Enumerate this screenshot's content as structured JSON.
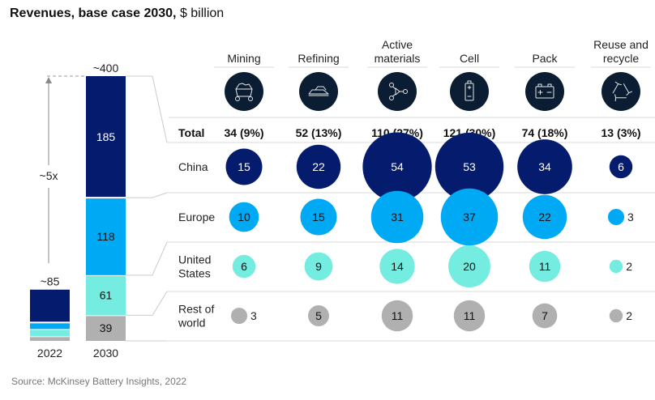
{
  "title": {
    "bold": "Revenues, base case 2030,",
    "unit": "$ billion"
  },
  "source": "Source: McKinsey Battery Insights, 2022",
  "colors": {
    "china": "#051c6e",
    "europe": "#00a9f4",
    "united_states": "#74ece0",
    "rest_of_world": "#b0b0b0",
    "icon_bg": "#0b1d33",
    "rule": "#d8d8d8",
    "connector": "#cccccc"
  },
  "chart_data": [
    {
      "type": "bar",
      "subtype": "stacked",
      "title": "Revenues, base case 2030, $ billion",
      "categories": [
        "2022",
        "2030"
      ],
      "series": [
        {
          "name": "China",
          "values": [
            50,
            185
          ]
        },
        {
          "name": "Europe",
          "values": [
            10,
            118
          ]
        },
        {
          "name": "United States",
          "values": [
            11,
            61
          ]
        },
        {
          "name": "Rest of world",
          "values": [
            7,
            39
          ]
        }
      ],
      "totals": [
        "~85",
        "~400"
      ],
      "segment_labels_2030": [
        "185",
        "118",
        "61",
        "39"
      ],
      "annotations": [
        {
          "text": "~5x",
          "from": "2022",
          "to": "2030"
        }
      ],
      "ylim": [
        0,
        403
      ],
      "grid": false,
      "legend": "none"
    },
    {
      "type": "bubble-table",
      "columns": [
        "Mining",
        "Refining",
        "Active materials",
        "Cell",
        "Pack",
        "Reuse and recycle"
      ],
      "column_label_lines": [
        [
          "Mining"
        ],
        [
          "Refining"
        ],
        [
          "Active",
          "materials"
        ],
        [
          "Cell"
        ],
        [
          "Pack"
        ],
        [
          "Reuse and",
          "recycle"
        ]
      ],
      "column_icons": [
        "mining-cart-icon",
        "ingot-icon",
        "molecule-icon",
        "battery-cell-icon",
        "battery-pack-icon",
        "recycle-icon"
      ],
      "total_row_label": "Total",
      "totals": [
        "34 (9%)",
        "52 (13%)",
        "110 (27%)",
        "121 (30%)",
        "74 (18%)",
        "13 (3%)"
      ],
      "rows": [
        {
          "name": "China",
          "label_lines": [
            "China"
          ],
          "values": [
            15,
            22,
            54,
            53,
            34,
            6
          ]
        },
        {
          "name": "Europe",
          "label_lines": [
            "Europe"
          ],
          "values": [
            10,
            15,
            31,
            37,
            22,
            3
          ]
        },
        {
          "name": "United States",
          "label_lines": [
            "United",
            "States"
          ],
          "values": [
            6,
            9,
            14,
            20,
            11,
            2
          ]
        },
        {
          "name": "Rest of world",
          "label_lines": [
            "Rest of",
            "world"
          ],
          "values": [
            3,
            5,
            11,
            11,
            7,
            2
          ]
        }
      ]
    }
  ]
}
